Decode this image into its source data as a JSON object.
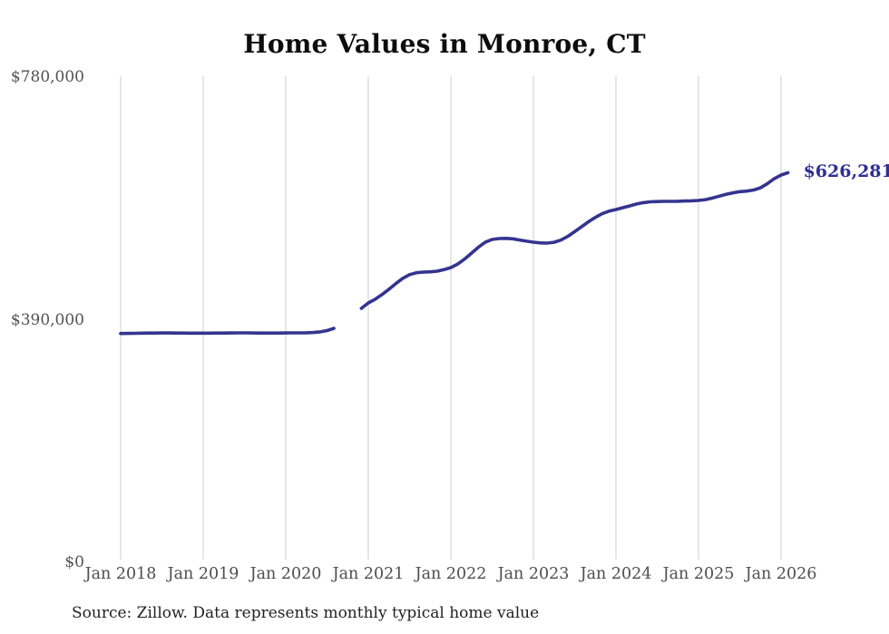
{
  "header": {
    "title": "Home Values in Monroe, CT"
  },
  "footer": {
    "source": "Source: Zillow. Data represents monthly typical home value"
  },
  "chart_data": {
    "type": "line",
    "title": "Home Values in Monroe, CT",
    "xlabel": "",
    "ylabel": "",
    "ylim": [
      0,
      780000
    ],
    "grid": "vertical-only",
    "legend": "none",
    "line_color": "#34348f",
    "end_label_color": "#2f2f96",
    "gridline_color": "#cccccc",
    "axis_label_color": "#525252",
    "end_label": "$626,281",
    "end_value": 626281,
    "x_start": "2018-01",
    "x_interval": "month",
    "x_tick_labels": [
      "Jan 2018",
      "Jan 2019",
      "Jan 2020",
      "Jan 2021",
      "Jan 2022",
      "Jan 2023",
      "Jan 2024",
      "Jan 2025",
      "Jan 2026"
    ],
    "y_ticks": [
      {
        "label": "$780,000",
        "value": 780000
      },
      {
        "label": "$390,000",
        "value": 390000
      },
      {
        "label": "$0",
        "value": 0
      }
    ],
    "series": [
      {
        "name": "Monthly typical home value",
        "values": [
          367800,
          368000,
          368200,
          368400,
          368500,
          368600,
          368700,
          368700,
          368600,
          368500,
          368400,
          368400,
          368400,
          368400,
          368500,
          368600,
          368700,
          368800,
          368800,
          368700,
          368600,
          368500,
          368500,
          368600,
          368700,
          368800,
          368900,
          369000,
          369500,
          370500,
          372500,
          376100,
          null,
          null,
          null,
          408200,
          417000,
          423000,
          430500,
          439000,
          448000,
          456500,
          462500,
          465500,
          466500,
          467000,
          468000,
          470500,
          473800,
          479500,
          487500,
          497000,
          506500,
          514500,
          519000,
          520500,
          520800,
          520000,
          518200,
          516300,
          514700,
          513500,
          513200,
          514500,
          518000,
          524000,
          531500,
          539500,
          547500,
          554500,
          560500,
          564500,
          567100,
          570000,
          573000,
          576000,
          578200,
          579500,
          580000,
          580200,
          580200,
          580400,
          580800,
          581200,
          581700,
          583000,
          585500,
          588500,
          591500,
          594000,
          595800,
          596800,
          598500,
          602000,
          608500,
          616500,
          622500,
          626281
        ]
      }
    ]
  }
}
